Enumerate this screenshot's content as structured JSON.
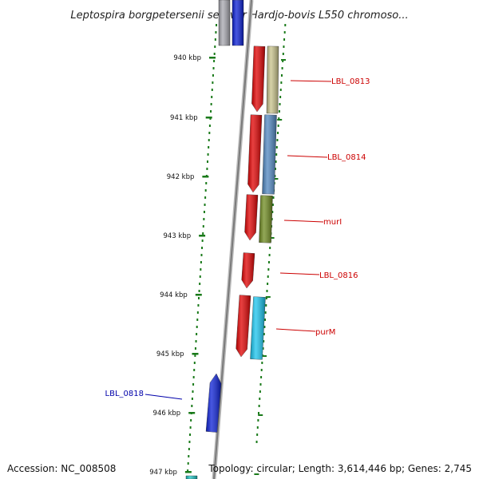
{
  "title": "Leptospira borgpetersenii serovar Hardjo-bovis L550 chromoso...",
  "ticks": [
    "940 kbp",
    "941 kbp",
    "942 kbp",
    "943 kbp",
    "944 kbp",
    "945 kbp",
    "946 kbp",
    "947 kbp"
  ],
  "genes": [
    {
      "id": "top-blue",
      "label": "",
      "color": "#0a1fd6",
      "strand": "minus"
    },
    {
      "id": "top-gray",
      "label": "",
      "color": "#a8a8b0",
      "strand": "minus"
    },
    {
      "id": "LBL_0813",
      "label": "LBL_0813",
      "label_color": "#cc0000",
      "color": "#c8c38a",
      "strand": "plus"
    },
    {
      "id": "LBL_0814",
      "label": "LBL_0814",
      "label_color": "#cc0000",
      "color": "#4f86c0",
      "strand": "plus"
    },
    {
      "id": "murI",
      "label": "murI",
      "label_color": "#cc0000",
      "color": "#6e8a1f",
      "strand": "plus"
    },
    {
      "id": "LBL_0816",
      "label": "LBL_0816",
      "label_color": "#cc0000",
      "color": "#e00000",
      "strand": "plus"
    },
    {
      "id": "purM",
      "label": "purM",
      "label_color": "#cc0000",
      "color": "#18c4ee",
      "strand": "plus"
    },
    {
      "id": "LBL_0818",
      "label": "LBL_0818",
      "label_color": "#0000aa",
      "color": "#0a1fd6",
      "strand": "minus"
    },
    {
      "id": "bottom-cyan",
      "label": "",
      "color": "#18c4c4",
      "strand": "minus"
    }
  ],
  "cds_color": "#e00000",
  "backbone_color": "#8a8a8a",
  "tick_color": "#1a7a1a",
  "accession": "Accession: NC_008508",
  "topology": "Topology: circular; Length: 3,614,446 bp; Genes: 2,745"
}
